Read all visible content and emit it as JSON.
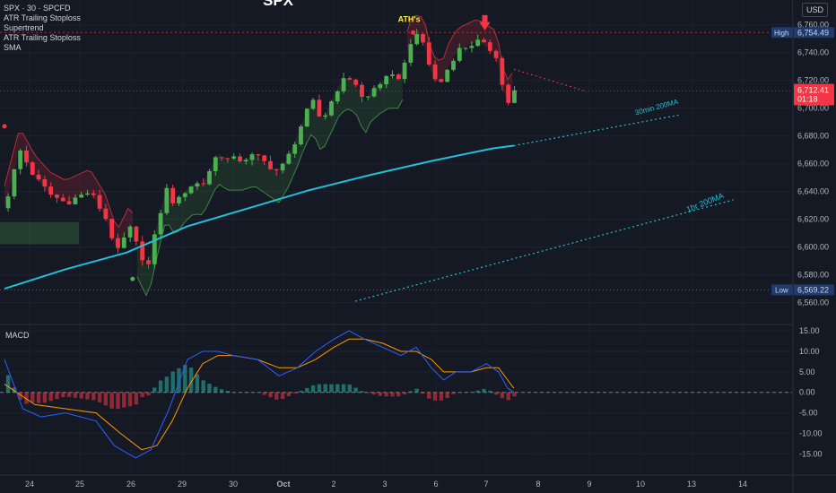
{
  "legend": {
    "symbol": "SPX · 30 · SPCFD",
    "indicators": [
      "ATR Trailing Stoploss",
      "Supertrend",
      "ATR Trailing Stoploss",
      "SMA"
    ]
  },
  "title": "SPX",
  "currency": "USD",
  "macd_label": "MACD",
  "colors": {
    "background": "#151924",
    "up": "#4caf50",
    "down": "#f23645",
    "sma": "#22c0d8",
    "macd": "#2962ff",
    "signal": "#ff9800",
    "text": "#b2b5be"
  },
  "chart_data": [
    {
      "type": "candlestick",
      "x_ticks": [
        "24",
        "25",
        "26",
        "29",
        "30",
        "Oct",
        "2",
        "3",
        "6",
        "7",
        "8",
        "9",
        "10",
        "13",
        "14"
      ],
      "y_ticks": [
        "6,760.00",
        "6,740.00",
        "6,720.00",
        "6,700.00",
        "6,680.00",
        "6,660.00",
        "6,640.00",
        "6,620.00",
        "6,600.00",
        "6,580.00",
        "6,560.00"
      ],
      "ylim": [
        6552,
        6765
      ],
      "price_labels": {
        "high": "High",
        "high_value": "6,754.49",
        "last_value": "6,712.41",
        "countdown": "01:18",
        "low": "Low",
        "low_value": "6,569.22"
      },
      "annotations": [
        "ATH's",
        "30min 200MA",
        "1hr 200MA"
      ],
      "close_path": [
        {
          "t": 0,
          "close": 6628
        },
        {
          "t": 0.5,
          "close": 6670
        },
        {
          "t": 1.0,
          "close": 6650
        },
        {
          "t": 1.5,
          "close": 6638
        },
        {
          "t": 2.0,
          "close": 6632
        },
        {
          "t": 2.8,
          "close": 6640
        },
        {
          "t": 3.3,
          "close": 6622
        },
        {
          "t": 3.7,
          "close": 6596
        },
        {
          "t": 4.1,
          "close": 6614
        },
        {
          "t": 4.4,
          "close": 6598
        },
        {
          "t": 4.7,
          "close": 6585
        },
        {
          "t": 5.0,
          "close": 6615
        },
        {
          "t": 5.3,
          "close": 6642
        },
        {
          "t": 5.6,
          "close": 6630
        },
        {
          "t": 5.9,
          "close": 6640
        },
        {
          "t": 6.2,
          "close": 6646
        },
        {
          "t": 6.5,
          "close": 6645
        },
        {
          "t": 7.0,
          "close": 6668
        },
        {
          "t": 7.3,
          "close": 6663
        },
        {
          "t": 7.8,
          "close": 6663
        },
        {
          "t": 8.2,
          "close": 6666
        },
        {
          "t": 8.6,
          "close": 6660
        },
        {
          "t": 9.0,
          "close": 6654
        },
        {
          "t": 9.3,
          "close": 6665
        },
        {
          "t": 9.6,
          "close": 6680
        },
        {
          "t": 9.8,
          "close": 6692
        },
        {
          "t": 10.1,
          "close": 6705
        },
        {
          "t": 10.4,
          "close": 6690
        },
        {
          "t": 10.7,
          "close": 6704
        },
        {
          "t": 11.0,
          "close": 6718
        },
        {
          "t": 11.3,
          "close": 6722
        },
        {
          "t": 11.6,
          "close": 6716
        },
        {
          "t": 11.8,
          "close": 6702
        },
        {
          "t": 12.0,
          "close": 6712
        },
        {
          "t": 12.3,
          "close": 6718
        },
        {
          "t": 12.6,
          "close": 6722
        },
        {
          "t": 12.9,
          "close": 6722
        },
        {
          "t": 13.1,
          "close": 6730
        },
        {
          "t": 13.3,
          "close": 6748
        },
        {
          "t": 13.6,
          "close": 6752
        },
        {
          "t": 13.8,
          "close": 6744
        },
        {
          "t": 14.0,
          "close": 6724
        },
        {
          "t": 14.2,
          "close": 6718
        },
        {
          "t": 14.4,
          "close": 6720
        },
        {
          "t": 14.6,
          "close": 6733
        },
        {
          "t": 14.9,
          "close": 6742
        },
        {
          "t": 15.2,
          "close": 6745
        },
        {
          "t": 15.5,
          "close": 6748
        },
        {
          "t": 15.8,
          "close": 6744
        },
        {
          "t": 16.1,
          "close": 6740
        },
        {
          "t": 16.25,
          "close": 6726
        },
        {
          "t": 16.4,
          "close": 6706
        },
        {
          "t": 16.55,
          "close": 6704
        },
        {
          "t": 16.7,
          "close": 6712
        }
      ],
      "sma_30min_200": [
        {
          "t": 0,
          "v": 6570
        },
        {
          "t": 2,
          "v": 6584
        },
        {
          "t": 4,
          "v": 6596
        },
        {
          "t": 6,
          "v": 6615
        },
        {
          "t": 8,
          "v": 6628
        },
        {
          "t": 10,
          "v": 6641
        },
        {
          "t": 12,
          "v": 6652
        },
        {
          "t": 14,
          "v": 6662
        },
        {
          "t": 16,
          "v": 6671
        },
        {
          "t": 16.7,
          "v": 6673
        }
      ]
    },
    {
      "type": "line",
      "title": "MACD",
      "y_ticks": [
        "15.00",
        "10.00",
        "5.00",
        "0.00",
        "-5.00",
        "-10.00",
        "-15.00"
      ],
      "ylim": [
        -18,
        17
      ],
      "macd": [
        {
          "t": 0,
          "v": 8
        },
        {
          "t": 0.6,
          "v": -4
        },
        {
          "t": 1.2,
          "v": -6
        },
        {
          "t": 2.0,
          "v": -5
        },
        {
          "t": 3.0,
          "v": -7
        },
        {
          "t": 3.6,
          "v": -13
        },
        {
          "t": 4.3,
          "v": -16
        },
        {
          "t": 4.8,
          "v": -14
        },
        {
          "t": 5.4,
          "v": -4
        },
        {
          "t": 6.0,
          "v": 8
        },
        {
          "t": 6.5,
          "v": 10
        },
        {
          "t": 7.0,
          "v": 10
        },
        {
          "t": 7.5,
          "v": 9
        },
        {
          "t": 8.3,
          "v": 8
        },
        {
          "t": 9.0,
          "v": 4
        },
        {
          "t": 9.6,
          "v": 6
        },
        {
          "t": 10.2,
          "v": 10
        },
        {
          "t": 10.8,
          "v": 13
        },
        {
          "t": 11.3,
          "v": 15
        },
        {
          "t": 11.8,
          "v": 13
        },
        {
          "t": 12.4,
          "v": 11
        },
        {
          "t": 13.0,
          "v": 9
        },
        {
          "t": 13.5,
          "v": 11
        },
        {
          "t": 14.0,
          "v": 6
        },
        {
          "t": 14.4,
          "v": 3
        },
        {
          "t": 14.8,
          "v": 5
        },
        {
          "t": 15.3,
          "v": 5
        },
        {
          "t": 15.8,
          "v": 7
        },
        {
          "t": 16.2,
          "v": 5
        },
        {
          "t": 16.5,
          "v": 1
        },
        {
          "t": 16.7,
          "v": 0
        }
      ],
      "signal": [
        {
          "t": 0,
          "v": 2
        },
        {
          "t": 1.0,
          "v": -3
        },
        {
          "t": 2.0,
          "v": -4
        },
        {
          "t": 3.0,
          "v": -5
        },
        {
          "t": 3.8,
          "v": -10
        },
        {
          "t": 4.5,
          "v": -14
        },
        {
          "t": 5.0,
          "v": -13
        },
        {
          "t": 5.5,
          "v": -7
        },
        {
          "t": 6.0,
          "v": 1
        },
        {
          "t": 6.5,
          "v": 7
        },
        {
          "t": 7.0,
          "v": 9
        },
        {
          "t": 7.5,
          "v": 9
        },
        {
          "t": 8.3,
          "v": 8
        },
        {
          "t": 9.0,
          "v": 6
        },
        {
          "t": 9.6,
          "v": 6
        },
        {
          "t": 10.2,
          "v": 8
        },
        {
          "t": 10.8,
          "v": 11
        },
        {
          "t": 11.3,
          "v": 13
        },
        {
          "t": 11.8,
          "v": 13
        },
        {
          "t": 12.4,
          "v": 12
        },
        {
          "t": 13.0,
          "v": 10
        },
        {
          "t": 13.5,
          "v": 10
        },
        {
          "t": 14.0,
          "v": 8
        },
        {
          "t": 14.4,
          "v": 5
        },
        {
          "t": 14.8,
          "v": 5
        },
        {
          "t": 15.3,
          "v": 5
        },
        {
          "t": 15.8,
          "v": 6
        },
        {
          "t": 16.2,
          "v": 6
        },
        {
          "t": 16.5,
          "v": 3
        },
        {
          "t": 16.7,
          "v": 1
        }
      ]
    }
  ]
}
